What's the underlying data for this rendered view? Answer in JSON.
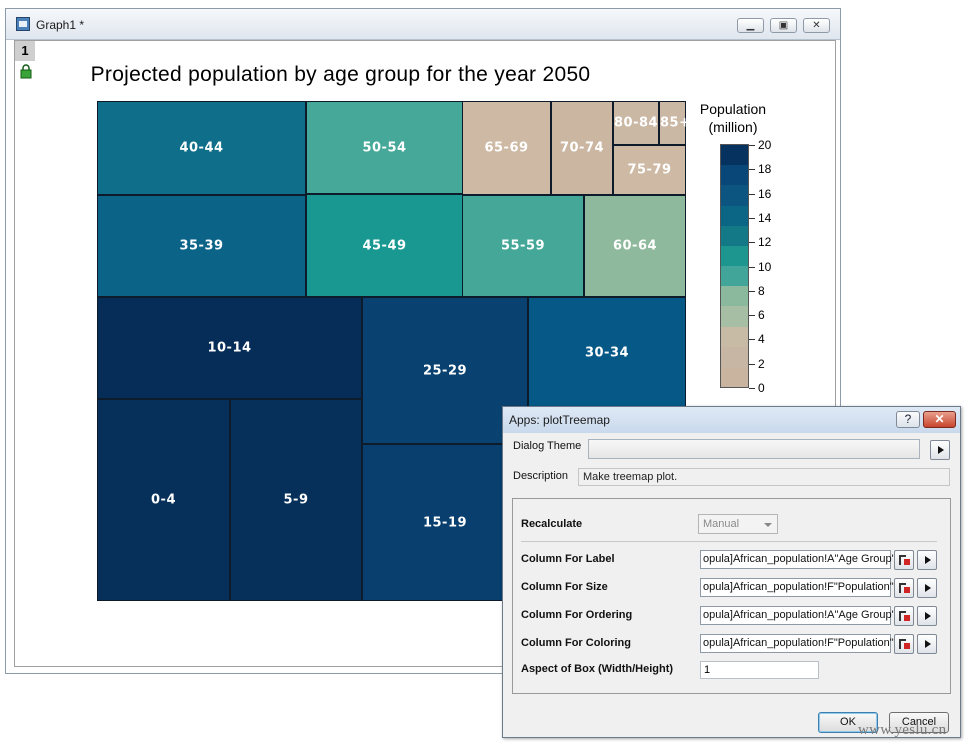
{
  "graph_window": {
    "title": "Graph1 *",
    "layer_number": "1"
  },
  "chart_data": {
    "type": "treemap",
    "title": "Projected population by age group for the year 2050",
    "colorbar": {
      "title_line1": "Population",
      "title_line2": "(million)",
      "ticks": [
        "0",
        "2",
        "4",
        "6",
        "8",
        "10",
        "12",
        "14",
        "16",
        "18",
        "20"
      ],
      "range": [
        0,
        20
      ],
      "band_colors": [
        "#c9b4a0",
        "#c7b6a3",
        "#c8bba5",
        "#a6bea3",
        "#8ab99d",
        "#41a699",
        "#1d968f",
        "#137986",
        "#0b6585",
        "#0b5580",
        "#084778",
        "#06325f"
      ]
    },
    "cells": [
      {
        "label": "40-44",
        "value": 13.4,
        "color": "#0f6e89"
      },
      {
        "label": "50-54",
        "value": 10.8,
        "color": "#45a898"
      },
      {
        "label": "65-69",
        "value": 4.0,
        "color": "#cdb9a4"
      },
      {
        "label": "70-74",
        "value": 3.1,
        "color": "#cab6a1"
      },
      {
        "label": "80-84",
        "value": 1.0,
        "color": "#cbb8a4"
      },
      {
        "label": "85+",
        "value": 0.6,
        "color": "#cbb8a4"
      },
      {
        "label": "75-79",
        "value": 2.0,
        "color": "#cdb9a4"
      },
      {
        "label": "35-39",
        "value": 14.2,
        "color": "#0b6488"
      },
      {
        "label": "45-49",
        "value": 11.9,
        "color": "#189890"
      },
      {
        "label": "55-59",
        "value": 8.7,
        "color": "#44a797"
      },
      {
        "label": "60-64",
        "value": 6.3,
        "color": "#8eb99c"
      },
      {
        "label": "10-14",
        "value": 20.0,
        "color": "#062d57"
      },
      {
        "label": "25-29",
        "value": 17.3,
        "color": "#094271"
      },
      {
        "label": "30-34",
        "value": 15.4,
        "color": "#065987"
      },
      {
        "label": "0-4",
        "value": 20.3,
        "color": "#06305a"
      },
      {
        "label": "5-9",
        "value": 20.3,
        "color": "#062f59"
      },
      {
        "label": "15-19",
        "value": 18.8,
        "color": "#083f6e"
      }
    ]
  },
  "dialog": {
    "title": "Apps: plotTreemap",
    "help_label": "?",
    "close_label": "✕",
    "theme_label": "Dialog Theme",
    "theme_value": "",
    "description_label": "Description",
    "description_value": "Make treemap plot.",
    "recalculate_label": "Recalculate",
    "recalculate_value": "Manual",
    "label_col_label": "Column For Label",
    "label_col_value": "opula]African_population!A\"Age Group\"",
    "size_col_label": "Column For Size",
    "size_col_value": "opula]African_population!F\"Population\"",
    "order_col_label": "Column For Ordering",
    "order_col_value": "opula]African_population!A\"Age Group\"",
    "color_col_label": "Column For Coloring",
    "color_col_value": "opula]African_population!F\"Population\"(",
    "aspect_label": "Aspect of Box (Width/Height)",
    "aspect_value": "1",
    "ok_label": "OK",
    "cancel_label": "Cancel"
  },
  "watermark": "www.yeslu.cn"
}
